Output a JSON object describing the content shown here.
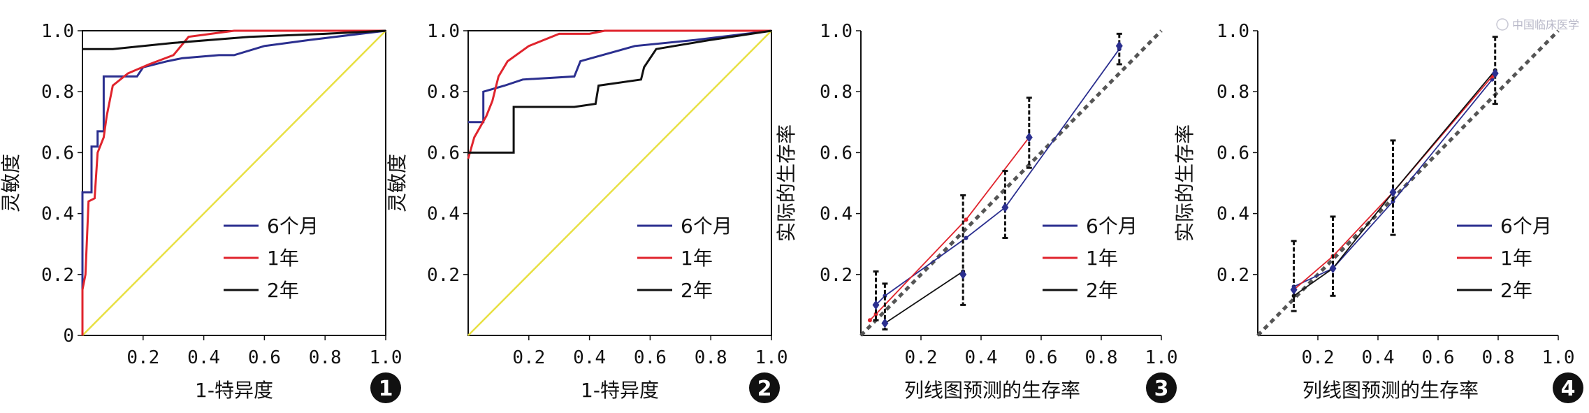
{
  "watermark": "中国临床医学",
  "colors": {
    "six_month": "#2b2f8f",
    "one_year": "#e0242d",
    "two_year": "#111111",
    "diagonal": "#e8e043",
    "ideal": "#555555",
    "badge": "#111111"
  },
  "chart_data": [
    {
      "type": "line",
      "variant": "roc",
      "ylabel": "灵敏度",
      "xlabel": "1-特异度",
      "xlim": [
        0,
        1
      ],
      "ylim": [
        0,
        1
      ],
      "xticks": [
        {
          "v": 0.2,
          "t": "0.2"
        },
        {
          "v": 0.4,
          "t": "0.4"
        },
        {
          "v": 0.6,
          "t": "0.6"
        },
        {
          "v": 0.8,
          "t": "0.8"
        },
        {
          "v": 1.0,
          "t": "1.0"
        }
      ],
      "yticks": [
        {
          "v": 0,
          "t": "0"
        },
        {
          "v": 0.2,
          "t": "0.2"
        },
        {
          "v": 0.4,
          "t": "0.4"
        },
        {
          "v": 0.6,
          "t": "0.6"
        },
        {
          "v": 0.8,
          "t": "0.8"
        },
        {
          "v": 1.0,
          "t": "1.0"
        }
      ],
      "legend": [
        "6个月",
        "1年",
        "2年"
      ],
      "badge": "1",
      "diagonal": true,
      "series": [
        {
          "name": "6个月",
          "color_key": "six_month",
          "points": [
            [
              0,
              0
            ],
            [
              0,
              0.47
            ],
            [
              0.03,
              0.47
            ],
            [
              0.03,
              0.62
            ],
            [
              0.05,
              0.62
            ],
            [
              0.05,
              0.67
            ],
            [
              0.07,
              0.67
            ],
            [
              0.07,
              0.85
            ],
            [
              0.12,
              0.85
            ],
            [
              0.18,
              0.85
            ],
            [
              0.2,
              0.88
            ],
            [
              0.28,
              0.9
            ],
            [
              0.33,
              0.91
            ],
            [
              0.45,
              0.92
            ],
            [
              0.5,
              0.92
            ],
            [
              0.6,
              0.95
            ],
            [
              0.75,
              0.97
            ],
            [
              1,
              1
            ]
          ]
        },
        {
          "name": "1年",
          "color_key": "one_year",
          "points": [
            [
              0,
              0
            ],
            [
              0,
              0.15
            ],
            [
              0.01,
              0.2
            ],
            [
              0.02,
              0.44
            ],
            [
              0.04,
              0.45
            ],
            [
              0.05,
              0.6
            ],
            [
              0.07,
              0.65
            ],
            [
              0.08,
              0.72
            ],
            [
              0.1,
              0.82
            ],
            [
              0.15,
              0.86
            ],
            [
              0.22,
              0.89
            ],
            [
              0.3,
              0.92
            ],
            [
              0.35,
              0.98
            ],
            [
              0.5,
              1
            ],
            [
              1,
              1
            ]
          ]
        },
        {
          "name": "2年",
          "color_key": "two_year",
          "points": [
            [
              0,
              0.94
            ],
            [
              0.1,
              0.94
            ],
            [
              0.3,
              0.96
            ],
            [
              0.55,
              0.98
            ],
            [
              0.8,
              0.99
            ],
            [
              1,
              1
            ]
          ]
        }
      ]
    },
    {
      "type": "line",
      "variant": "roc",
      "ylabel": "灵敏度",
      "xlabel": "1-特异度",
      "xlim": [
        0,
        1
      ],
      "ylim": [
        0,
        1
      ],
      "xticks": [
        {
          "v": 0.2,
          "t": "0.2"
        },
        {
          "v": 0.4,
          "t": "0.4"
        },
        {
          "v": 0.6,
          "t": "0.6"
        },
        {
          "v": 0.8,
          "t": "0.8"
        },
        {
          "v": 1.0,
          "t": "1.0"
        }
      ],
      "yticks": [
        {
          "v": 0.2,
          "t": "0.2"
        },
        {
          "v": 0.4,
          "t": "0.4"
        },
        {
          "v": 0.6,
          "t": "0.6"
        },
        {
          "v": 0.8,
          "t": "0.8"
        },
        {
          "v": 1.0,
          "t": "1.0"
        }
      ],
      "legend": [
        "6个月",
        "1年",
        "2年"
      ],
      "badge": "2",
      "diagonal": true,
      "series": [
        {
          "name": "6个月",
          "color_key": "six_month",
          "points": [
            [
              0,
              0.7
            ],
            [
              0.05,
              0.7
            ],
            [
              0.05,
              0.8
            ],
            [
              0.12,
              0.82
            ],
            [
              0.18,
              0.84
            ],
            [
              0.35,
              0.85
            ],
            [
              0.37,
              0.9
            ],
            [
              0.55,
              0.95
            ],
            [
              0.75,
              0.97
            ],
            [
              1,
              1
            ]
          ]
        },
        {
          "name": "1年",
          "color_key": "one_year",
          "points": [
            [
              0,
              0.58
            ],
            [
              0.02,
              0.65
            ],
            [
              0.06,
              0.72
            ],
            [
              0.08,
              0.77
            ],
            [
              0.1,
              0.85
            ],
            [
              0.13,
              0.9
            ],
            [
              0.2,
              0.95
            ],
            [
              0.3,
              0.99
            ],
            [
              0.4,
              0.99
            ],
            [
              0.45,
              1
            ],
            [
              1,
              1
            ]
          ]
        },
        {
          "name": "2年",
          "color_key": "two_year",
          "points": [
            [
              0,
              0.6
            ],
            [
              0.15,
              0.6
            ],
            [
              0.15,
              0.75
            ],
            [
              0.35,
              0.75
            ],
            [
              0.42,
              0.76
            ],
            [
              0.43,
              0.82
            ],
            [
              0.57,
              0.84
            ],
            [
              0.58,
              0.88
            ],
            [
              0.62,
              0.94
            ],
            [
              0.68,
              0.95
            ],
            [
              0.8,
              0.97
            ],
            [
              1,
              1
            ]
          ]
        }
      ]
    },
    {
      "type": "line",
      "variant": "calibration",
      "ylabel": "实际的生存率",
      "xlabel": "列线图预测的生存率",
      "xlim": [
        0,
        1
      ],
      "ylim": [
        0,
        1
      ],
      "xticks": [
        {
          "v": 0.2,
          "t": "0.2"
        },
        {
          "v": 0.4,
          "t": "0.4"
        },
        {
          "v": 0.6,
          "t": "0.6"
        },
        {
          "v": 0.8,
          "t": "0.8"
        },
        {
          "v": 1.0,
          "t": "1.0"
        }
      ],
      "yticks": [
        {
          "v": 0.2,
          "t": "0.2"
        },
        {
          "v": 0.4,
          "t": "0.4"
        },
        {
          "v": 0.6,
          "t": "0.6"
        },
        {
          "v": 0.8,
          "t": "0.8"
        },
        {
          "v": 1.0,
          "t": "1.0"
        }
      ],
      "legend": [
        "6个月",
        "1年",
        "2年"
      ],
      "badge": "3",
      "ideal_line": true,
      "series": [
        {
          "name": "6个月",
          "color_key": "six_month",
          "points": [
            [
              0.05,
              0.1
            ],
            [
              0.08,
              0.13
            ],
            [
              0.35,
              0.32
            ],
            [
              0.48,
              0.42
            ],
            [
              0.86,
              0.94
            ]
          ]
        },
        {
          "name": "1年",
          "color_key": "one_year",
          "points": [
            [
              0.03,
              0.05
            ],
            [
              0.05,
              0.07
            ],
            [
              0.35,
              0.38
            ],
            [
              0.56,
              0.65
            ]
          ]
        },
        {
          "name": "2年",
          "color_key": "two_year",
          "points": [
            [
              0.08,
              0.04
            ],
            [
              0.34,
              0.21
            ]
          ]
        }
      ],
      "error_bars": [
        {
          "x": 0.05,
          "y": 0.1,
          "lo": 0.05,
          "hi": 0.21
        },
        {
          "x": 0.08,
          "y": 0.04,
          "lo": 0.02,
          "hi": 0.17
        },
        {
          "x": 0.34,
          "y": 0.2,
          "lo": 0.1,
          "hi": 0.46
        },
        {
          "x": 0.48,
          "y": 0.42,
          "lo": 0.32,
          "hi": 0.54
        },
        {
          "x": 0.56,
          "y": 0.65,
          "lo": 0.55,
          "hi": 0.78
        },
        {
          "x": 0.86,
          "y": 0.95,
          "lo": 0.89,
          "hi": 0.99
        }
      ]
    },
    {
      "type": "line",
      "variant": "calibration",
      "ylabel": "实际的生存率",
      "xlabel": "列线图预测的生存率",
      "xlim": [
        0,
        1
      ],
      "ylim": [
        0,
        1
      ],
      "xticks": [
        {
          "v": 0.2,
          "t": "0.2"
        },
        {
          "v": 0.4,
          "t": "0.4"
        },
        {
          "v": 0.6,
          "t": "0.6"
        },
        {
          "v": 0.8,
          "t": "0.8"
        },
        {
          "v": 1.0,
          "t": "1.0"
        }
      ],
      "yticks": [
        {
          "v": 0.2,
          "t": "0.2"
        },
        {
          "v": 0.4,
          "t": "0.4"
        },
        {
          "v": 0.6,
          "t": "0.6"
        },
        {
          "v": 0.8,
          "t": "0.8"
        },
        {
          "v": 1.0,
          "t": "1.0"
        }
      ],
      "legend": [
        "6个月",
        "1年",
        "2年"
      ],
      "badge": "4",
      "ideal_line": true,
      "series": [
        {
          "name": "6个月",
          "color_key": "six_month",
          "points": [
            [
              0.12,
              0.16
            ],
            [
              0.25,
              0.22
            ],
            [
              0.45,
              0.44
            ],
            [
              0.78,
              0.84
            ]
          ]
        },
        {
          "name": "1年",
          "color_key": "one_year",
          "points": [
            [
              0.12,
              0.15
            ],
            [
              0.25,
              0.26
            ],
            [
              0.45,
              0.47
            ],
            [
              0.78,
              0.85
            ]
          ]
        },
        {
          "name": "2年",
          "color_key": "two_year",
          "points": [
            [
              0.12,
              0.13
            ],
            [
              0.25,
              0.22
            ],
            [
              0.45,
              0.47
            ],
            [
              0.79,
              0.87
            ]
          ]
        }
      ],
      "error_bars": [
        {
          "x": 0.12,
          "y": 0.15,
          "lo": 0.08,
          "hi": 0.31
        },
        {
          "x": 0.25,
          "y": 0.22,
          "lo": 0.13,
          "hi": 0.39
        },
        {
          "x": 0.45,
          "y": 0.47,
          "lo": 0.33,
          "hi": 0.64
        },
        {
          "x": 0.79,
          "y": 0.86,
          "lo": 0.76,
          "hi": 0.98
        }
      ]
    }
  ]
}
